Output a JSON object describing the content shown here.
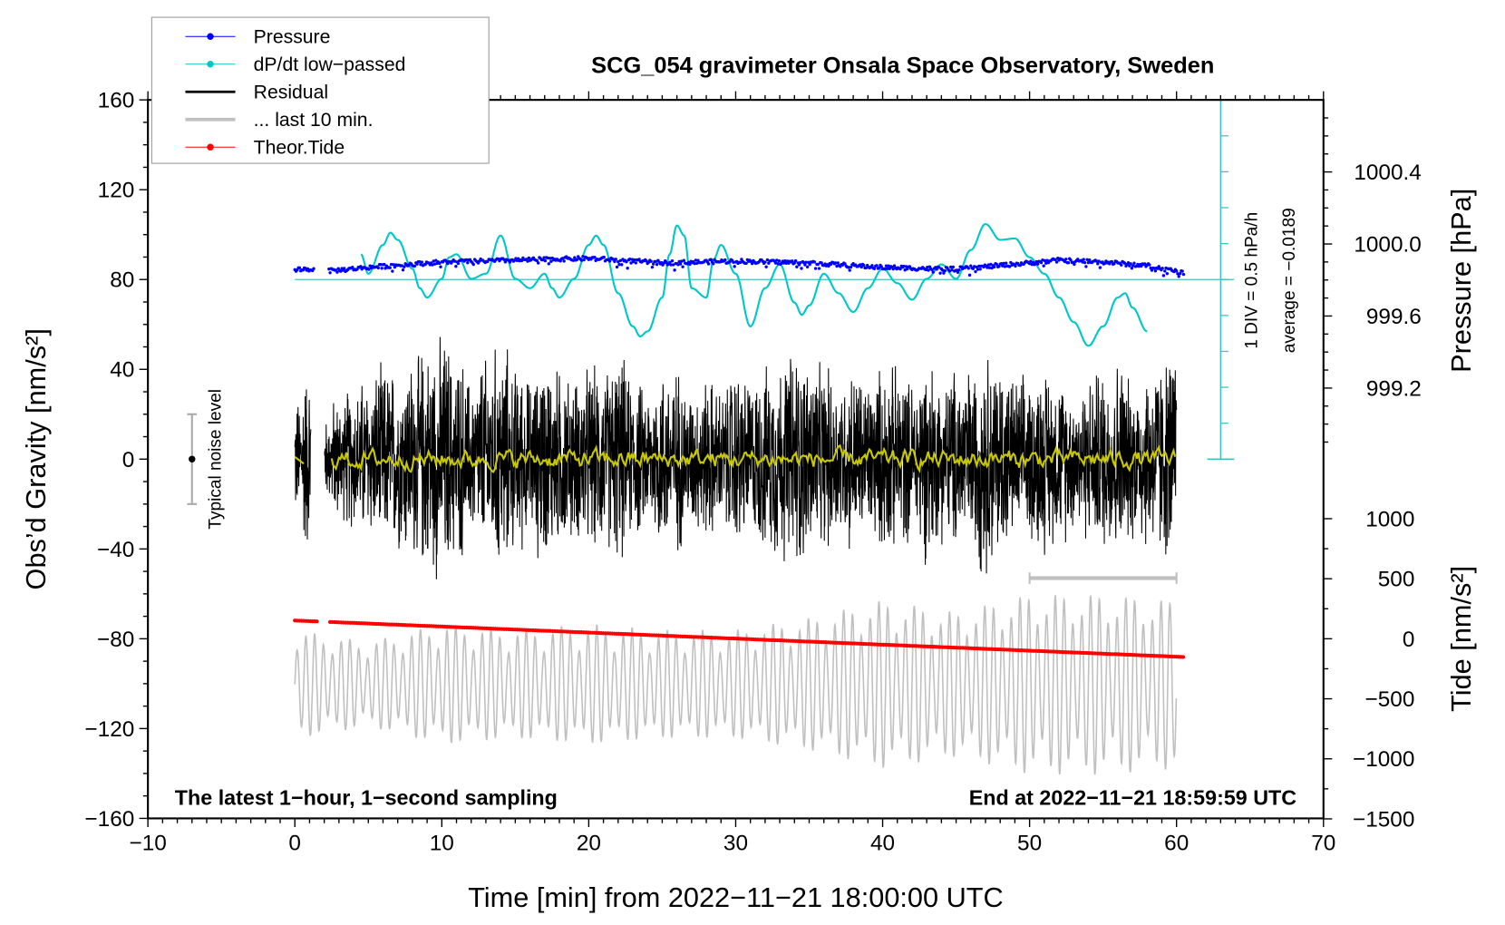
{
  "chart_data": {
    "type": "line",
    "title": "SCG_054 gravimeter Onsala Space Observatory, Sweden",
    "xlabel": "Time [min] from 2022−11−21 18:00:00 UTC",
    "ylabel": "Obs’d Gravity [nm/s²]",
    "y2label_pressure": "Pressure [hPa]",
    "y2label_tide": "Tide [nm/s²]",
    "xlim": [
      -10,
      70
    ],
    "ylim": [
      -160,
      160
    ],
    "x_ticks": [
      -10,
      0,
      10,
      20,
      30,
      40,
      50,
      60,
      70
    ],
    "x_tick_labels": [
      "−10",
      "0",
      "10",
      "20",
      "30",
      "40",
      "50",
      "60",
      "70"
    ],
    "y_ticks": [
      160,
      120,
      80,
      40,
      0,
      -40,
      -80,
      -120,
      -160
    ],
    "y_tick_labels": [
      "160",
      "120",
      "80",
      "40",
      "0",
      "−40",
      "−80",
      "−120",
      "−160"
    ],
    "pressure_ticks": [
      1000.4,
      1000.0,
      999.6,
      999.2
    ],
    "pressure_tick_labels": [
      "1000.4",
      "1000.0",
      "999.6",
      "999.2"
    ],
    "tide_ticks": [
      1000,
      500,
      0,
      -500,
      -1000,
      -1500
    ],
    "tide_tick_labels": [
      "1000",
      "500",
      "0",
      "−500",
      "−1000",
      "−1500"
    ],
    "legend": {
      "placement": "top-left",
      "entries": [
        {
          "label": "Pressure",
          "color": "#0000ff",
          "marker": "dot"
        },
        {
          "label": "dP/dt low−passed",
          "color": "#00c8c8",
          "marker": "dot"
        },
        {
          "label": "Residual",
          "color": "#000000",
          "marker": "line"
        },
        {
          "label": "... last 10 min.",
          "color": "#c0c0c0",
          "marker": "line"
        },
        {
          "label": "Theor.Tide",
          "color": "#ff0000",
          "marker": "dot"
        }
      ]
    },
    "annotations": {
      "left_bottom": "The latest 1−hour, 1−second sampling",
      "right_bottom": "End at 2022−11−21 18:59:59 UTC",
      "noise_label": "Typical noise level",
      "div_label": "1 DIV = 0.5 hPa/h",
      "average_label": "average = −0.0189"
    },
    "noise_bar": {
      "x": -7,
      "half_range": 20
    },
    "dpdt_scale": {
      "hpa_per_h_per_div": 0.5,
      "divisions": 10,
      "average": -0.0189
    },
    "series": [
      {
        "name": "Pressure",
        "unit": "hPa",
        "color": "#0000ff",
        "x": [
          0,
          1.2,
          2.3,
          5,
          10,
          15,
          20,
          23,
          25,
          30,
          35,
          40,
          45,
          50,
          52,
          55,
          58,
          60.5
        ],
        "y": [
          999.86,
          999.86,
          999.85,
          999.87,
          999.9,
          999.91,
          999.92,
          999.905,
          999.895,
          999.905,
          999.895,
          999.87,
          999.86,
          999.895,
          999.91,
          999.9,
          999.88,
          999.84
        ],
        "gaps": [
          [
            1.3,
            2.3
          ]
        ]
      },
      {
        "name": "dP/dt low-passed",
        "unit": "hPa/h",
        "color": "#00c8c8",
        "x": [
          4.5,
          5,
          6,
          6.5,
          7,
          8,
          8.5,
          9,
          10,
          10.5,
          11,
          12,
          13,
          14,
          15,
          16,
          17,
          17.5,
          18,
          19,
          20,
          20.5,
          21,
          22,
          23,
          23.5,
          24,
          25,
          25.5,
          26,
          26.5,
          27,
          28,
          28.5,
          29,
          30,
          31,
          32,
          33,
          34,
          34.5,
          35,
          36,
          37,
          38,
          39,
          40,
          41,
          42,
          43,
          44,
          45,
          46,
          47,
          48,
          49,
          50,
          51,
          52,
          53,
          54,
          55,
          56,
          56.5,
          57,
          58
        ],
        "y": [
          0.35,
          0.08,
          0.48,
          0.65,
          0.55,
          0.15,
          -0.12,
          -0.25,
          0.01,
          0.31,
          0.35,
          0.01,
          0.08,
          0.61,
          0.01,
          -0.12,
          0.08,
          -0.12,
          -0.25,
          0.01,
          0.48,
          0.61,
          0.48,
          -0.19,
          -0.65,
          -0.79,
          -0.72,
          -0.25,
          0.35,
          0.75,
          0.61,
          -0.12,
          -0.25,
          0.28,
          0.48,
          0.08,
          -0.65,
          -0.12,
          0.21,
          -0.32,
          -0.49,
          -0.36,
          0.08,
          -0.19,
          -0.45,
          -0.12,
          0.15,
          -0.05,
          -0.28,
          0.01,
          0.21,
          0.01,
          0.41,
          0.77,
          0.55,
          0.57,
          0.31,
          0.08,
          -0.25,
          -0.59,
          -0.92,
          -0.65,
          -0.25,
          -0.19,
          -0.39,
          -0.72
        ]
      },
      {
        "name": "Residual",
        "unit": "nm/s²",
        "color": "#000000",
        "x_range": [
          0,
          60
        ],
        "gaps": [
          [
            1.1,
            2.0
          ]
        ],
        "envelope_per_min": [
          30,
          45,
          20,
          30,
          35,
          40,
          45,
          45,
          50,
          55,
          60,
          50,
          40,
          50,
          55,
          45,
          40,
          50,
          45,
          40,
          45,
          45,
          50,
          40,
          35,
          45,
          45,
          35,
          40,
          35,
          45,
          40,
          45,
          50,
          55,
          50,
          45,
          40,
          45,
          40,
          45,
          45,
          40,
          50,
          40,
          45,
          45,
          55,
          50,
          40,
          40,
          45,
          40,
          35,
          40,
          45,
          50,
          40,
          45,
          50,
          55
        ]
      },
      {
        "name": "Residual smoothed",
        "unit": "nm/s²",
        "color": "#c8c800",
        "mean": 0,
        "spread": 3
      },
      {
        "name": "... last 10 min.",
        "unit": "nm/s²",
        "color": "#c0c0c0",
        "tide_axis_center": -380,
        "period_min": 0.6,
        "envelope_x": [
          0,
          5,
          10,
          15,
          20,
          25,
          30,
          35,
          40,
          45,
          50,
          55,
          60
        ],
        "envelope": [
          450,
          350,
          500,
          450,
          500,
          450,
          450,
          550,
          700,
          600,
          750,
          750,
          700
        ],
        "bar": {
          "x": [
            50,
            60
          ],
          "y": -53
        }
      },
      {
        "name": "Theor.Tide",
        "unit": "nm/s²",
        "color": "#ff0000",
        "x": [
          0,
          60.5
        ],
        "y": [
          152,
          -152
        ],
        "gaps": [
          [
            1.5,
            2.3
          ]
        ]
      }
    ]
  }
}
